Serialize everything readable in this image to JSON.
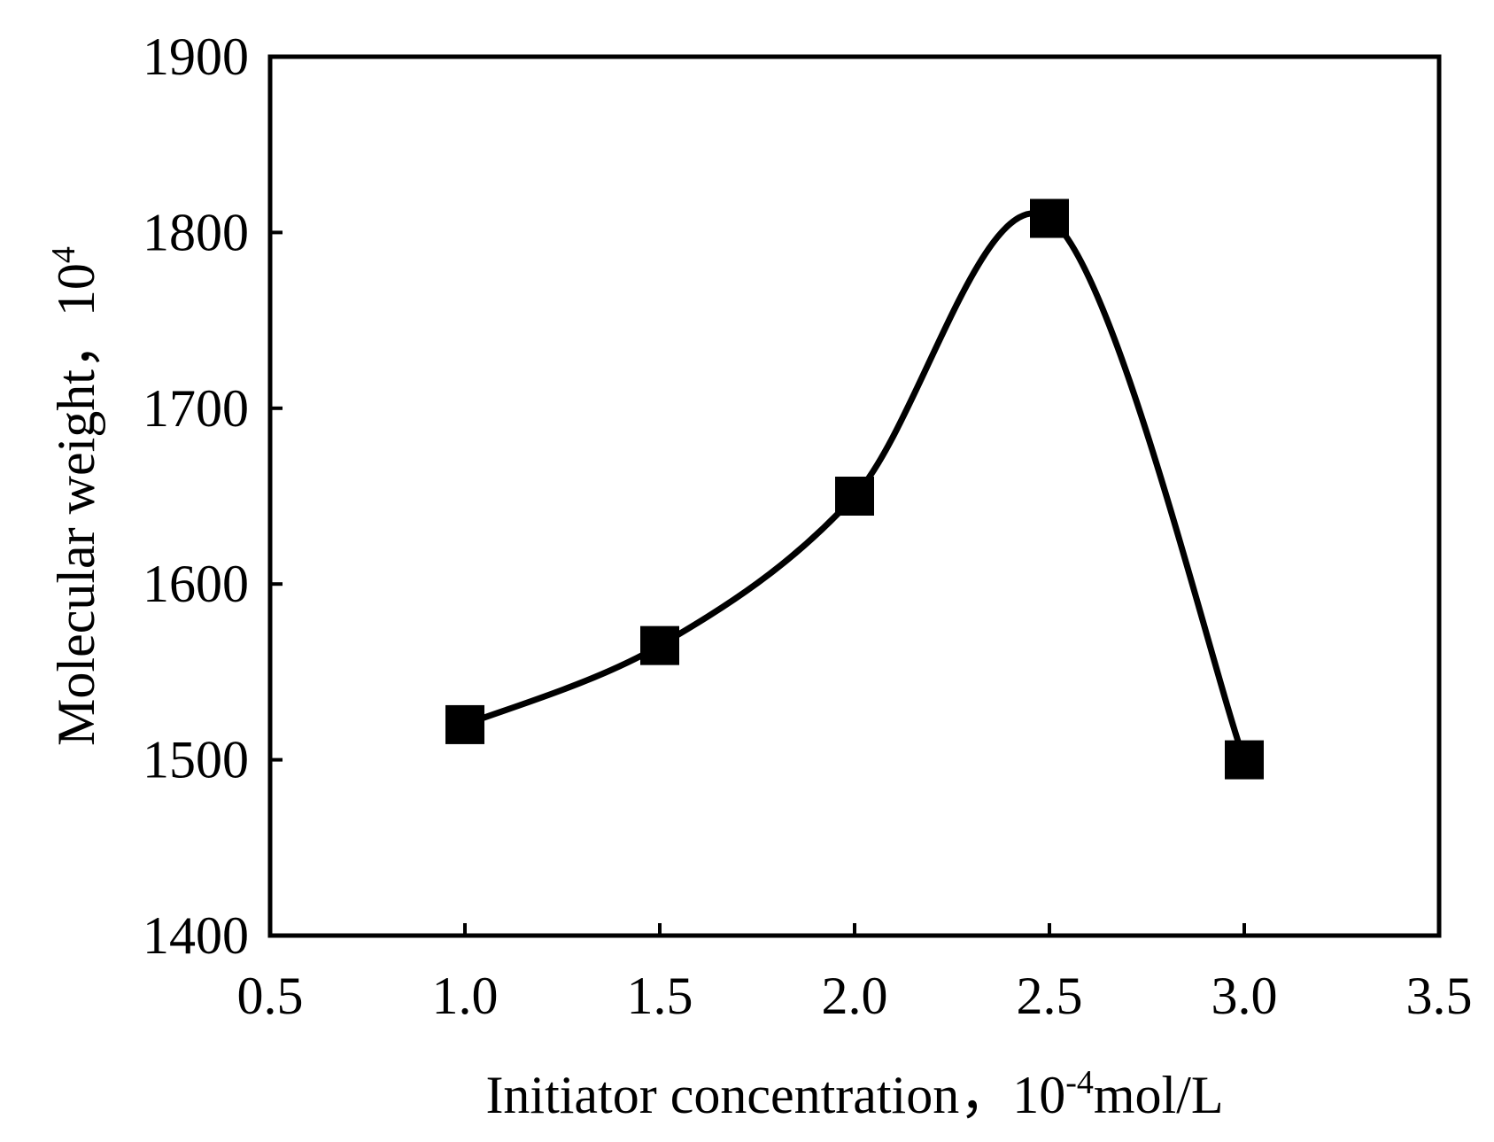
{
  "chart_data": {
    "type": "line",
    "title": "",
    "xlabel": "Initiator concentration，10-4mol/L",
    "xlabel_main": "Initiator concentration，",
    "xlabel_pre": "10",
    "xlabel_sup": "-4",
    "xlabel_post": "mol/L",
    "ylabel": "Molecular weight，104",
    "ylabel_main": "Molecular weight，",
    "ylabel_pre": "10",
    "ylabel_sup": "4",
    "xlim": [
      0.5,
      3.5
    ],
    "ylim": [
      1400,
      1900
    ],
    "x_ticks": [
      0.5,
      1.0,
      1.5,
      2.0,
      2.5,
      3.0,
      3.5
    ],
    "x_tick_labels": [
      "0.5",
      "1.0",
      "1.5",
      "2.0",
      "2.5",
      "3.0",
      "3.5"
    ],
    "y_ticks": [
      1400,
      1500,
      1600,
      1700,
      1800,
      1900
    ],
    "y_tick_labels": [
      "1400",
      "1500",
      "1600",
      "1700",
      "1800",
      "1900"
    ],
    "grid": false,
    "series": [
      {
        "name": "Molecular weight",
        "marker": "square",
        "line": "smooth",
        "color": "#000000",
        "x": [
          1.0,
          1.5,
          2.0,
          2.5,
          3.0
        ],
        "y": [
          1520,
          1565,
          1650,
          1808,
          1500
        ]
      }
    ]
  }
}
